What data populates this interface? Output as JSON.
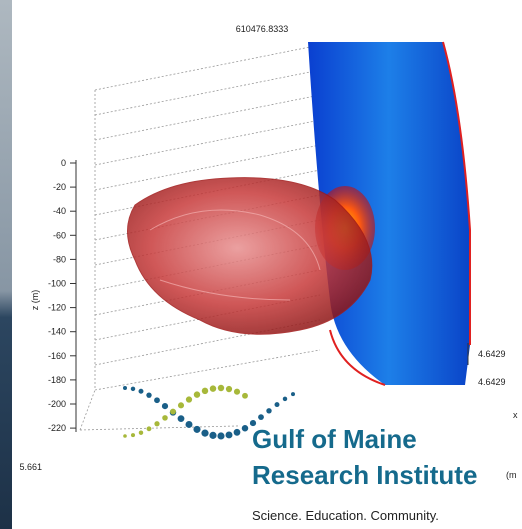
{
  "plot": {
    "title": "610476.8333",
    "z_label": "z (m)",
    "z_ticks": [
      "0",
      "-20",
      "-40",
      "-60",
      "-80",
      "-100",
      "-120",
      "-140",
      "-160",
      "-180",
      "-200",
      "-220"
    ],
    "corner_label": "5.661",
    "right_labels": [
      "4.6429",
      "4.6429"
    ],
    "axis_fragment": "x",
    "unit_fragment": "(m"
  },
  "logo": {
    "line1": "Gulf of Maine",
    "line2": "Research Institute",
    "tagline": "Science. Education. Community."
  }
}
